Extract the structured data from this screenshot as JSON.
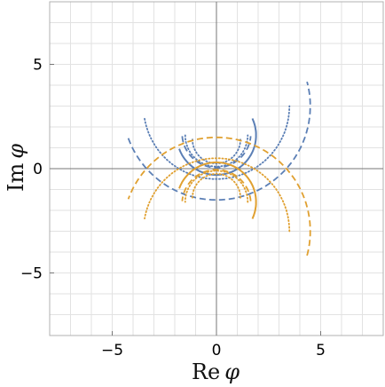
{
  "chart_data": {
    "type": "line",
    "xlabel": {
      "text": "Re",
      "symbol": "φ"
    },
    "ylabel": {
      "text": "Im",
      "symbol": "φ"
    },
    "xlim": [
      -8,
      8
    ],
    "ylim": [
      -8,
      8
    ],
    "xticks": [
      -5,
      0,
      5
    ],
    "yticks": [
      -5,
      0,
      5
    ],
    "xtick_labels": [
      "−5",
      "0",
      "5"
    ],
    "ytick_labels": [
      "−5",
      "0",
      "5"
    ],
    "grid": true,
    "minor_grid_step": 1,
    "colors": {
      "upper": "#5b7fb5",
      "lower": "#e0a030",
      "grid": "#e2e2e2",
      "axis": "#777777",
      "frame": "#b0b0b0"
    },
    "series": [
      {
        "group": "upper",
        "style": "dashed",
        "cx": 0,
        "cy": 3.0,
        "r": 4.5,
        "start_deg": 200,
        "end_deg": 375
      },
      {
        "group": "upper",
        "style": "dotted",
        "cx": 0,
        "cy": 3.0,
        "r": 3.5,
        "start_deg": 190,
        "end_deg": 360
      },
      {
        "group": "upper",
        "style": "solid",
        "cx": 0,
        "cy": 1.6,
        "r": 1.9,
        "start_deg": 200,
        "end_deg": 385
      },
      {
        "group": "upper",
        "style": "dashed",
        "cx": 0,
        "cy": 1.7,
        "r": 1.65,
        "start_deg": 185,
        "end_deg": 355
      },
      {
        "group": "upper",
        "style": "dotted",
        "cx": 0,
        "cy": 1.6,
        "r": 1.5,
        "start_deg": 180,
        "end_deg": 360
      },
      {
        "group": "upper",
        "style": "dotted",
        "cx": 0,
        "cy": 1.4,
        "r": 1.15,
        "start_deg": 180,
        "end_deg": 360
      },
      {
        "group": "lower",
        "style": "dashed",
        "cx": 0,
        "cy": -3.0,
        "r": 4.5,
        "start_deg": -15,
        "end_deg": 160
      },
      {
        "group": "lower",
        "style": "dotted",
        "cx": 0,
        "cy": -3.0,
        "r": 3.5,
        "start_deg": 0,
        "end_deg": 170
      },
      {
        "group": "lower",
        "style": "solid",
        "cx": 0,
        "cy": -1.6,
        "r": 1.9,
        "start_deg": -25,
        "end_deg": 160
      },
      {
        "group": "lower",
        "style": "dashed",
        "cx": 0,
        "cy": -1.7,
        "r": 1.65,
        "start_deg": 5,
        "end_deg": 175
      },
      {
        "group": "lower",
        "style": "dotted",
        "cx": 0,
        "cy": -1.6,
        "r": 1.5,
        "start_deg": 0,
        "end_deg": 180
      },
      {
        "group": "lower",
        "style": "dotted",
        "cx": 0,
        "cy": -1.4,
        "r": 1.15,
        "start_deg": 0,
        "end_deg": 180
      }
    ]
  }
}
